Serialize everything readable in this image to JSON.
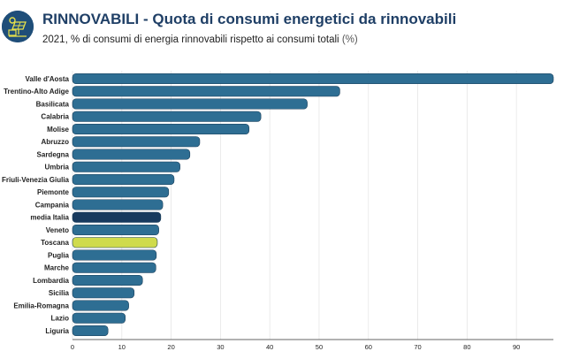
{
  "header": {
    "title_keyword": "RINNOVABILI",
    "title_rest": " - Quota di consumi energetici da rinnovabili",
    "subtitle_main": "2021, % di consumi di energia rinnovabili rispetto ai consumi totali",
    "subtitle_unit": "(%)",
    "logo_icon": "solar-panel-house-icon"
  },
  "colors": {
    "default_bar": "#2e6e93",
    "highlight_average": "#173a5e",
    "highlight_region": "#cfdb4c",
    "title": "#1f3f66"
  },
  "chart_data": {
    "type": "bar",
    "orientation": "horizontal",
    "categories": [
      "Valle d'Aosta",
      "Trentino-Alto Adige",
      "Basilicata",
      "Calabria",
      "Molise",
      "Abruzzo",
      "Sardegna",
      "Umbria",
      "Friuli-Venezia Giulia",
      "Piemonte",
      "Campania",
      "media Italia",
      "Veneto",
      "Toscana",
      "Puglia",
      "Marche",
      "Lombardia",
      "Sicilia",
      "Emilia-Romagna",
      "Lazio",
      "Liguria"
    ],
    "values": [
      97.5,
      54.2,
      47.6,
      38.2,
      35.8,
      25.8,
      23.8,
      21.8,
      20.6,
      19.5,
      18.3,
      17.9,
      17.5,
      17.2,
      17.0,
      16.9,
      14.2,
      12.5,
      11.4,
      10.7,
      7.2
    ],
    "highlights": {
      "media Italia": "average",
      "Toscana": "region"
    },
    "xlim": [
      0,
      97.5
    ],
    "xticks": [
      0,
      10,
      20,
      30,
      40,
      50,
      60,
      70,
      80,
      90
    ],
    "grid": true,
    "title": "",
    "xlabel": "",
    "ylabel": ""
  }
}
